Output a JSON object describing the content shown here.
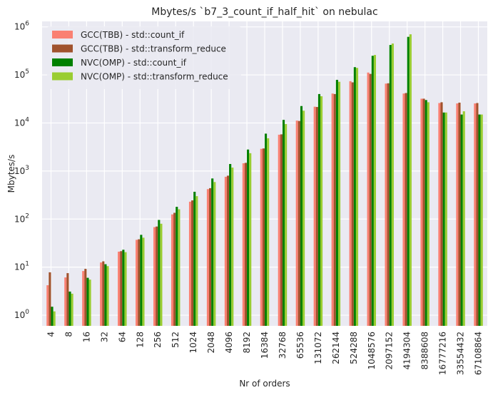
{
  "chart_data": {
    "type": "bar",
    "title": "Mbytes/s `b7_3_count_if_half_hit` on nebulac",
    "xlabel": "Nr of orders",
    "ylabel": "Mbytes/s",
    "yscale": "log",
    "ylim": [
      0.6,
      1300000
    ],
    "yticks": [
      1,
      10,
      100,
      1000,
      10000,
      100000,
      1000000
    ],
    "grid": true,
    "legend_position": "top-left",
    "categories": [
      "4",
      "8",
      "16",
      "32",
      "64",
      "128",
      "256",
      "512",
      "1024",
      "2048",
      "4096",
      "8192",
      "16384",
      "32768",
      "65536",
      "131072",
      "262144",
      "524288",
      "1048576",
      "2097152",
      "4194304",
      "8388608",
      "16777216",
      "33554432",
      "67108864"
    ],
    "series": [
      {
        "name": "GCC(TBB) - std::count_if",
        "color": "#fa8072",
        "values": [
          4.2,
          6.1,
          8.3,
          12.5,
          21,
          37,
          68,
          125,
          230,
          420,
          760,
          1450,
          2900,
          5700,
          11200,
          21800,
          41000,
          74000,
          112000,
          66000,
          41000,
          32000,
          26000,
          25500,
          25500
        ]
      },
      {
        "name": "GCC(TBB) - std::transform_reduce",
        "color": "#a0522d",
        "values": [
          7.8,
          7.5,
          9.2,
          13.2,
          21.5,
          38,
          70,
          135,
          245,
          440,
          800,
          1480,
          2950,
          5800,
          11000,
          21500,
          40000,
          70000,
          105000,
          67000,
          42000,
          32000,
          27000,
          26500,
          26000
        ]
      },
      {
        "name": "NVC(OMP) - std::count_if",
        "color": "#008000",
        "values": [
          1.5,
          3.1,
          6.0,
          11.5,
          23,
          47,
          96,
          180,
          370,
          700,
          1400,
          2800,
          6000,
          11600,
          22500,
          40000,
          79000,
          145000,
          250000,
          420000,
          620000,
          30000,
          16500,
          15000,
          15000
        ]
      },
      {
        "name": "NVC(OMP) - std::transform_reduce",
        "color": "#9acd32",
        "values": [
          1.2,
          2.8,
          5.5,
          10.5,
          20.5,
          41,
          80,
          160,
          300,
          590,
          1180,
          2350,
          4800,
          9500,
          18000,
          36000,
          72000,
          140000,
          260000,
          450000,
          700000,
          27000,
          16500,
          17500,
          15000
        ]
      }
    ]
  }
}
